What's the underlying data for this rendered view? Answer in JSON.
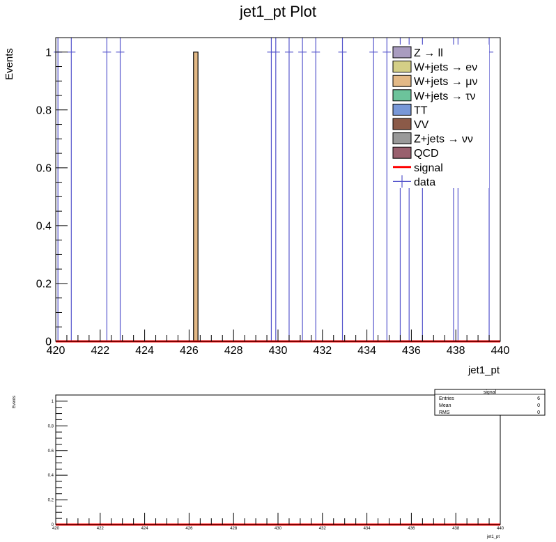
{
  "chart_data": [
    {
      "type": "bar",
      "title": "jet1_pt Plot",
      "xlabel": "jet1_pt",
      "ylabel": "Events",
      "xlim": [
        420,
        440
      ],
      "ylim": [
        0,
        1.05
      ],
      "xticks": [
        "420",
        "422",
        "424",
        "426",
        "428",
        "430",
        "432",
        "434",
        "436",
        "438",
        "440"
      ],
      "yticks": [
        "0",
        "0.2",
        "0.4",
        "0.6",
        "0.8",
        "1"
      ],
      "legend": {
        "placement": "top-right",
        "entries": [
          {
            "label": "Z → ll",
            "color": "#a99cc0",
            "kind": "box"
          },
          {
            "label": "W+jets → eν",
            "color": "#d4cf86",
            "kind": "box"
          },
          {
            "label": "W+jets → μν",
            "color": "#e3b986",
            "kind": "box"
          },
          {
            "label": "W+jets → τν",
            "color": "#6cc39b",
            "kind": "box"
          },
          {
            "label": "TT",
            "color": "#7898d8",
            "kind": "box"
          },
          {
            "label": "VV",
            "color": "#8b5a48",
            "kind": "box"
          },
          {
            "label": "Z+jets → νν",
            "color": "#999999",
            "kind": "box"
          },
          {
            "label": "QCD",
            "color": "#99606e",
            "kind": "box"
          },
          {
            "label": "signal",
            "color": "#ff0000",
            "kind": "line"
          },
          {
            "label": "data",
            "color": "#5555cc",
            "kind": "marker"
          }
        ]
      },
      "stack_bars": [
        {
          "series": "W+jets → μν",
          "x_low": 426.2,
          "x_high": 426.4,
          "value": 1
        }
      ],
      "signal": {
        "name": "signal",
        "value": 0,
        "color": "#ff0000"
      },
      "data_points": [
        {
          "x": 420.1,
          "y": 1
        },
        {
          "x": 420.7,
          "y": 1
        },
        {
          "x": 422.3,
          "y": 1
        },
        {
          "x": 422.9,
          "y": 1
        },
        {
          "x": 429.7,
          "y": 1
        },
        {
          "x": 429.9,
          "y": 1
        },
        {
          "x": 430.5,
          "y": 1
        },
        {
          "x": 431.1,
          "y": 1
        },
        {
          "x": 431.7,
          "y": 1
        },
        {
          "x": 432.9,
          "y": 1
        },
        {
          "x": 434.3,
          "y": 1
        },
        {
          "x": 434.9,
          "y": 1
        },
        {
          "x": 435.5,
          "y": 1
        },
        {
          "x": 435.9,
          "y": 1
        },
        {
          "x": 436.5,
          "y": 1
        },
        {
          "x": 437.9,
          "y": 1
        },
        {
          "x": 438.1,
          "y": 1
        },
        {
          "x": 439.5,
          "y": 1
        }
      ],
      "data_color": "#5555cc"
    },
    {
      "type": "line",
      "xlabel": "jet1_pt",
      "ylabel": "Events",
      "xlim": [
        420,
        440
      ],
      "ylim": [
        0,
        1.05
      ],
      "xticks": [
        "420",
        "422",
        "424",
        "426",
        "428",
        "430",
        "432",
        "434",
        "436",
        "438",
        "440"
      ],
      "yticks": [
        "0",
        "0.2",
        "0.4",
        "0.6",
        "0.8",
        "1"
      ],
      "series": [
        {
          "name": "signal",
          "color": "#ff0000",
          "x": [
            420,
            440
          ],
          "values": [
            0,
            0
          ]
        }
      ],
      "stats_box": {
        "title": "signal",
        "rows": [
          {
            "label": "Entries",
            "value": "6"
          },
          {
            "label": "Mean",
            "value": "0"
          },
          {
            "label": "RMS",
            "value": "0"
          }
        ]
      }
    }
  ]
}
